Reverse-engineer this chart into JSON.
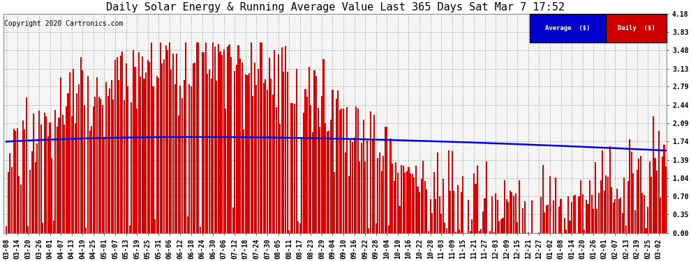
{
  "title": "Daily Solar Energy & Running Average Value Last 365 Days Sat Mar 7 17:52",
  "copyright": "Copyright 2020 Cartronics.com",
  "legend_avg": "Average  ($)",
  "legend_daily": "Daily  ($)",
  "avg_color": "#0000dd",
  "daily_color": "#dd0000",
  "legend_avg_bg": "#0000cc",
  "legend_daily_bg": "#cc0000",
  "ylim": [
    0.0,
    4.18
  ],
  "yticks": [
    0.0,
    0.35,
    0.7,
    1.04,
    1.39,
    1.74,
    2.09,
    2.44,
    2.79,
    3.13,
    3.48,
    3.83,
    4.18
  ],
  "background_color": "#ffffff",
  "plot_bg": "#f5f5f5",
  "grid_color": "#999999",
  "bar_width": 0.8,
  "n_days": 365,
  "x_tick_labels": [
    "03-08",
    "03-14",
    "03-20",
    "03-26",
    "04-01",
    "04-07",
    "04-13",
    "04-19",
    "04-25",
    "05-01",
    "05-07",
    "05-13",
    "05-19",
    "05-25",
    "05-31",
    "06-06",
    "06-12",
    "06-18",
    "06-24",
    "06-30",
    "07-06",
    "07-12",
    "07-18",
    "07-24",
    "07-30",
    "08-05",
    "08-11",
    "08-17",
    "08-23",
    "08-29",
    "09-04",
    "09-10",
    "09-16",
    "09-22",
    "09-28",
    "10-04",
    "10-10",
    "10-16",
    "10-22",
    "10-28",
    "11-03",
    "11-09",
    "11-15",
    "11-21",
    "11-27",
    "12-03",
    "12-09",
    "12-15",
    "12-21",
    "12-27",
    "01-02",
    "01-08",
    "01-14",
    "01-20",
    "01-26",
    "02-01",
    "02-07",
    "02-13",
    "02-19",
    "02-25",
    "03-02"
  ],
  "x_tick_positions": [
    0,
    6,
    12,
    18,
    24,
    30,
    36,
    42,
    48,
    54,
    60,
    66,
    72,
    78,
    84,
    90,
    96,
    102,
    108,
    114,
    120,
    126,
    132,
    138,
    144,
    150,
    156,
    162,
    168,
    174,
    180,
    186,
    192,
    198,
    204,
    210,
    216,
    222,
    228,
    234,
    240,
    246,
    252,
    258,
    264,
    270,
    276,
    282,
    288,
    294,
    300,
    306,
    312,
    318,
    324,
    330,
    336,
    342,
    348,
    354,
    360
  ],
  "title_fontsize": 11,
  "tick_fontsize": 7,
  "copyright_fontsize": 7,
  "avg_start": 1.74,
  "avg_peak": 1.88,
  "avg_peak_day": 110,
  "avg_end": 1.57
}
